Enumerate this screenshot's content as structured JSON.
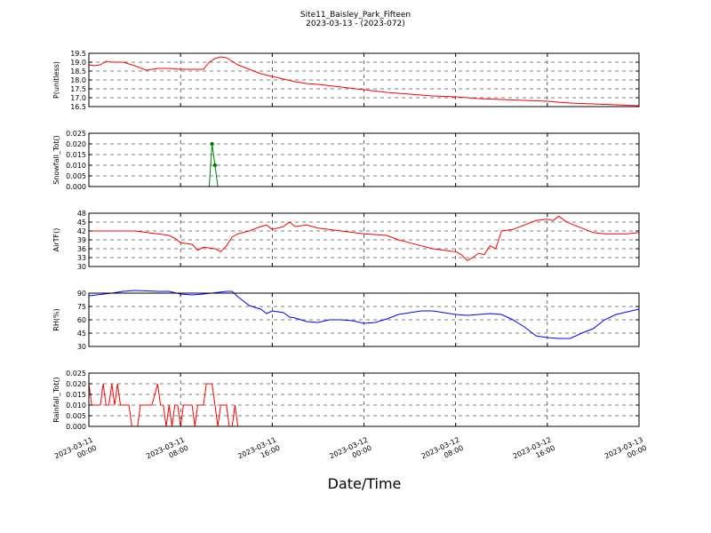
{
  "figure": {
    "title_line1": "Site11_Baisley_Park_Fifteen",
    "title_line2": "2023-03-13 - (2023-072)",
    "xlabel": "Date/Time",
    "x_ticks": [
      {
        "value": 0,
        "line1": "2023-03-11",
        "line2": "00:00"
      },
      {
        "value": 8,
        "line1": "2023-03-11",
        "line2": "08:00"
      },
      {
        "value": 16,
        "line1": "2023-03-11",
        "line2": "16:00"
      },
      {
        "value": 24,
        "line1": "2023-03-12",
        "line2": "00:00"
      },
      {
        "value": 32,
        "line1": "2023-03-12",
        "line2": "08:00"
      },
      {
        "value": 40,
        "line1": "2023-03-12",
        "line2": "16:00"
      },
      {
        "value": 48,
        "line1": "2023-03-13",
        "line2": "00:00"
      }
    ],
    "x_unit_note": "x values are hours after 2023-03-11 00:00"
  },
  "chart_data": [
    {
      "type": "line",
      "ylabel": "P(unitless)",
      "color": "#ff0000",
      "ylim": [
        16.5,
        19.5
      ],
      "yticks": [
        "16.5",
        "17.0",
        "17.5",
        "18.0",
        "18.5",
        "19.0",
        "19.5"
      ],
      "grid": true,
      "x": [
        0,
        0.5,
        1,
        1.5,
        2,
        3,
        4,
        5,
        5.5,
        6,
        7,
        8,
        9,
        10,
        10.5,
        11,
        11.5,
        12,
        12.5,
        13,
        14,
        15,
        16,
        17,
        18,
        19,
        20,
        22,
        24,
        26,
        28,
        30,
        32,
        34,
        36,
        38,
        40,
        42,
        44,
        46,
        48
      ],
      "values": [
        18.85,
        18.8,
        18.85,
        19.05,
        19.0,
        19.0,
        18.8,
        18.55,
        18.6,
        18.65,
        18.65,
        18.6,
        18.6,
        18.6,
        19.0,
        19.2,
        19.3,
        19.25,
        19.05,
        18.85,
        18.6,
        18.35,
        18.2,
        18.05,
        17.9,
        17.8,
        17.75,
        17.6,
        17.45,
        17.3,
        17.2,
        17.1,
        17.05,
        16.95,
        16.9,
        16.85,
        16.8,
        16.7,
        16.65,
        16.6,
        16.55
      ]
    },
    {
      "type": "line",
      "ylabel": "Snowfall_Tot()",
      "color": "#008000",
      "ylim": [
        0,
        0.025
      ],
      "yticks": [
        "0.000",
        "0.005",
        "0.010",
        "0.015",
        "0.020",
        "0.025"
      ],
      "grid": true,
      "x": [
        0,
        10.5,
        10.75,
        11,
        11.25,
        11.5,
        12,
        48
      ],
      "values": [
        0,
        0,
        0.02,
        0.01,
        0,
        0,
        0,
        0
      ],
      "markers": [
        10.75,
        11
      ]
    },
    {
      "type": "line",
      "ylabel": "AirTF()",
      "color": "#ff0000",
      "ylim": [
        30,
        48
      ],
      "yticks": [
        "30",
        "33",
        "36",
        "39",
        "42",
        "45",
        "48"
      ],
      "grid": true,
      "x": [
        0,
        2,
        4,
        6,
        7,
        7.5,
        8,
        9,
        9.5,
        10,
        11,
        11.5,
        12,
        12.5,
        13,
        14,
        15,
        15.5,
        16,
        17,
        17.5,
        18,
        19,
        20,
        22,
        24,
        26,
        27,
        28,
        30,
        31,
        32,
        32.5,
        33,
        33.5,
        34,
        34.5,
        35,
        35.5,
        36,
        37,
        38,
        39,
        40,
        40.5,
        41,
        41.5,
        42,
        43,
        44,
        45,
        46,
        47,
        48
      ],
      "values": [
        42,
        42,
        42,
        41,
        40.5,
        39.5,
        38,
        37.5,
        35.5,
        36.5,
        36,
        35,
        37,
        40,
        41,
        42,
        43.5,
        44,
        42.5,
        43.5,
        45,
        43.5,
        44,
        43,
        42,
        41,
        40.5,
        39,
        38,
        36,
        35.5,
        35,
        34,
        32,
        33,
        34.5,
        34,
        37,
        36,
        42,
        42.5,
        44,
        45.5,
        46,
        45.5,
        47,
        45.5,
        44.5,
        43,
        41.5,
        41,
        41,
        41,
        41.5
      ]
    },
    {
      "type": "line",
      "ylabel": "RH(%)",
      "color": "#0000ff",
      "ylim": [
        30,
        90
      ],
      "yticks": [
        "30",
        "45",
        "60",
        "75",
        "90"
      ],
      "grid": true,
      "x": [
        0,
        2,
        3,
        4,
        6,
        7,
        8,
        9,
        10,
        12,
        12.5,
        13,
        14,
        15,
        15.5,
        16,
        17,
        17.5,
        18,
        19,
        20,
        21,
        22,
        23,
        24,
        25,
        26,
        27,
        28,
        29,
        30,
        31,
        32,
        33,
        34,
        35,
        36,
        37,
        38,
        38.5,
        39,
        39.5,
        40,
        41,
        42,
        43,
        44,
        45,
        46,
        47,
        48
      ],
      "values": [
        87,
        90,
        92,
        93,
        92,
        92,
        89,
        88,
        89,
        92,
        92,
        86,
        76,
        72,
        67,
        70,
        68,
        63,
        62,
        58,
        57,
        60,
        60,
        59,
        56,
        57,
        61,
        66,
        68,
        70,
        70,
        68,
        66,
        65,
        66,
        67,
        66,
        60,
        52,
        47,
        42,
        41,
        40,
        39,
        39,
        45,
        50,
        60,
        66,
        69,
        72
      ]
    },
    {
      "type": "line",
      "ylabel": "Rainfall_Tot()",
      "color": "#ff0000",
      "ylim": [
        0,
        0.025
      ],
      "yticks": [
        "0.000",
        "0.005",
        "0.010",
        "0.015",
        "0.020",
        "0.025"
      ],
      "grid": true,
      "x": [
        0,
        0.25,
        0.5,
        1,
        1.25,
        1.5,
        1.75,
        2,
        2.25,
        2.5,
        2.75,
        3,
        3.25,
        3.5,
        3.75,
        4,
        4.25,
        4.5,
        4.75,
        5,
        5.5,
        6,
        6.25,
        6.5,
        6.75,
        7,
        7.25,
        7.5,
        7.75,
        8,
        8.25,
        8.5,
        8.75,
        9,
        9.25,
        9.5,
        10,
        10.25,
        10.5,
        10.75,
        11,
        11.25,
        11.5,
        11.75,
        12,
        12.25,
        12.5,
        12.75,
        13,
        48
      ],
      "values": [
        0.02,
        0.01,
        0.01,
        0.01,
        0.02,
        0.01,
        0.01,
        0.02,
        0.01,
        0.02,
        0.01,
        0.01,
        0.01,
        0.01,
        0,
        0,
        0,
        0.01,
        0.01,
        0.01,
        0.01,
        0.02,
        0.01,
        0.01,
        0,
        0.01,
        0,
        0.01,
        0.01,
        0,
        0.01,
        0.01,
        0.01,
        0.01,
        0,
        0.01,
        0.01,
        0.02,
        0.02,
        0.02,
        0.01,
        0,
        0.01,
        0.01,
        0.01,
        0,
        0,
        0.01,
        0,
        0
      ]
    }
  ]
}
